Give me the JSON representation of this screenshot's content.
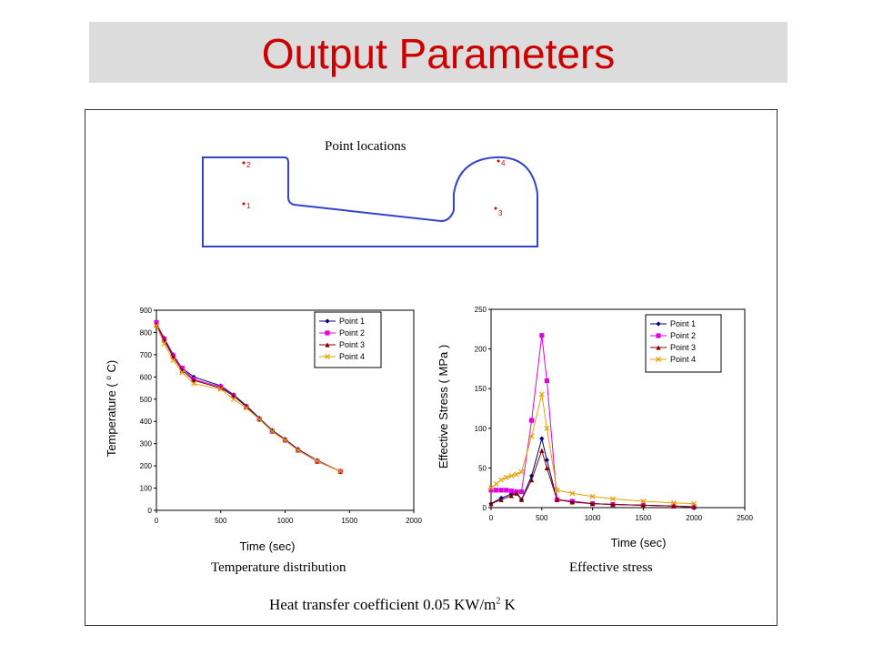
{
  "title": "Output Parameters",
  "colors": {
    "title": "#cc0000",
    "shape": "#3344cc",
    "marker": "#dd0000"
  },
  "point_locations": {
    "caption": "Point locations",
    "points": [
      "1",
      "2",
      "3",
      "4"
    ]
  },
  "captions": {
    "left": "Temperature distribution",
    "right": "Effective stress",
    "htc_prefix": "Heat transfer coefficient  0.05 KW/m",
    "htc_sup": "2",
    "htc_suffix": " K"
  },
  "chart_data": [
    {
      "type": "line",
      "xlabel": "Time (sec)",
      "ylabel_pre": "Temperature ( ",
      "ylabel_sup": "o",
      "ylabel_post": " C)",
      "xlim": [
        0,
        2000
      ],
      "ylim": [
        0,
        900
      ],
      "xticks": [
        "0",
        "500",
        "1000",
        "1500",
        "2000"
      ],
      "yticks": [
        "0",
        "100",
        "200",
        "300",
        "400",
        "500",
        "600",
        "700",
        "800",
        "900"
      ],
      "legend": "top-right",
      "series": [
        {
          "name": "Point 1",
          "color": "#000080",
          "marker": "diamond",
          "x": [
            0,
            60,
            130,
            200,
            290,
            500,
            600,
            700,
            800,
            900,
            1000,
            1100,
            1250,
            1430
          ],
          "y": [
            840,
            775,
            700,
            640,
            600,
            560,
            520,
            470,
            415,
            360,
            320,
            275,
            225,
            175
          ]
        },
        {
          "name": "Point 2",
          "color": "#e000e0",
          "marker": "square",
          "x": [
            0,
            60,
            130,
            200,
            290,
            500,
            600,
            700,
            800,
            900,
            1000,
            1100,
            1250,
            1430
          ],
          "y": [
            845,
            770,
            695,
            640,
            590,
            555,
            515,
            465,
            410,
            355,
            315,
            270,
            220,
            175
          ]
        },
        {
          "name": "Point 3",
          "color": "#800000",
          "marker": "triangle",
          "x": [
            0,
            60,
            130,
            200,
            290,
            500,
            600,
            700,
            800,
            900,
            1000,
            1100,
            1250,
            1430
          ],
          "y": [
            835,
            765,
            690,
            630,
            585,
            550,
            515,
            465,
            410,
            358,
            318,
            272,
            222,
            175
          ]
        },
        {
          "name": "Point 4",
          "color": "#e6a000",
          "marker": "x",
          "x": [
            0,
            60,
            130,
            200,
            290,
            500,
            600,
            700,
            800,
            900,
            1000,
            1100,
            1250,
            1430
          ],
          "y": [
            830,
            750,
            675,
            620,
            570,
            545,
            500,
            460,
            410,
            355,
            315,
            270,
            222,
            175
          ]
        }
      ]
    },
    {
      "type": "line",
      "xlabel": "Time (sec)",
      "ylabel": "Effective Stress ( MPa )",
      "xlim": [
        0,
        2500
      ],
      "ylim": [
        0,
        250
      ],
      "xticks": [
        "0",
        "500",
        "1000",
        "1500",
        "2000",
        "2500"
      ],
      "yticks": [
        "0",
        "50",
        "100",
        "150",
        "200",
        "250"
      ],
      "legend": "top-right",
      "series": [
        {
          "name": "Point 1",
          "color": "#000080",
          "marker": "diamond",
          "x": [
            0,
            100,
            200,
            250,
            300,
            400,
            500,
            550,
            650,
            800,
            1000,
            1200,
            1500,
            1800,
            2000
          ],
          "y": [
            5,
            12,
            17,
            20,
            10,
            40,
            87,
            60,
            10,
            8,
            5,
            4,
            3,
            2,
            1
          ]
        },
        {
          "name": "Point 2",
          "color": "#e000e0",
          "marker": "square",
          "x": [
            0,
            50,
            100,
            150,
            200,
            250,
            300,
            400,
            500,
            550,
            650,
            800,
            1000,
            1200,
            1500,
            1800,
            2000
          ],
          "y": [
            22,
            22,
            22,
            22,
            21,
            20,
            20,
            110,
            217,
            160,
            10,
            8,
            5,
            4,
            3,
            2,
            1
          ]
        },
        {
          "name": "Point 3",
          "color": "#800000",
          "marker": "triangle",
          "x": [
            0,
            100,
            200,
            250,
            300,
            400,
            500,
            550,
            650,
            800,
            1000,
            1200,
            1500,
            1800,
            2000
          ],
          "y": [
            5,
            10,
            15,
            18,
            10,
            35,
            72,
            50,
            10,
            7,
            5,
            4,
            3,
            2,
            1
          ]
        },
        {
          "name": "Point 4",
          "color": "#e6a000",
          "marker": "x",
          "x": [
            0,
            50,
            100,
            150,
            200,
            250,
            300,
            400,
            500,
            550,
            650,
            800,
            1000,
            1200,
            1500,
            1800,
            2000
          ],
          "y": [
            25,
            30,
            35,
            38,
            40,
            42,
            45,
            90,
            143,
            100,
            22,
            18,
            14,
            11,
            8,
            6,
            5
          ]
        }
      ]
    }
  ]
}
